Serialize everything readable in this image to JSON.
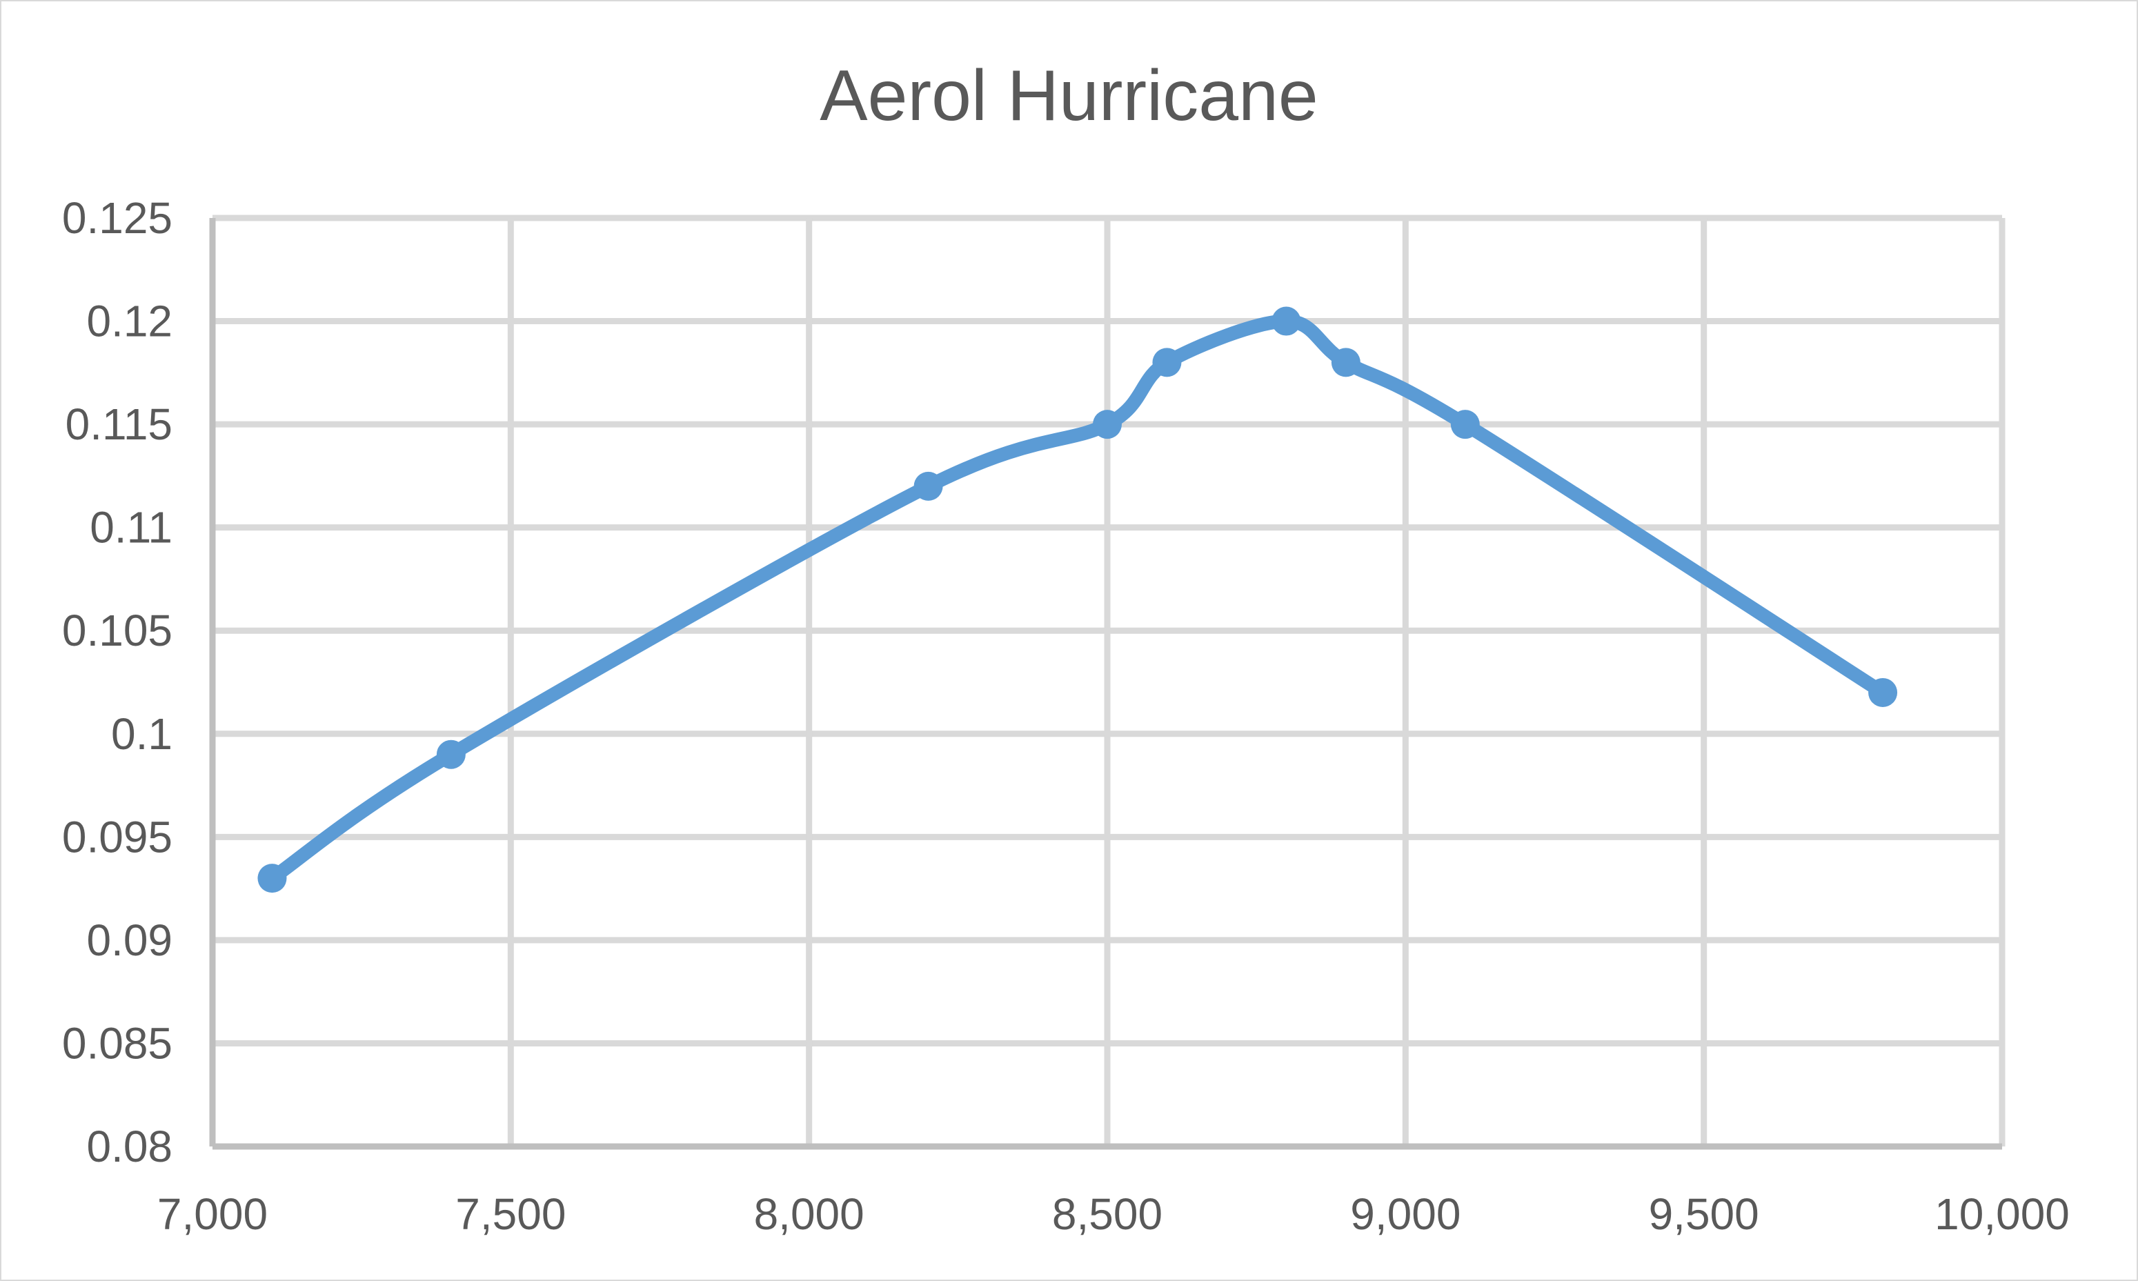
{
  "chart_data": {
    "type": "scatter",
    "title": "Aerol Hurricane",
    "xlabel": "",
    "ylabel": "",
    "xlim": [
      7000,
      10000
    ],
    "ylim": [
      0.08,
      0.125
    ],
    "x_ticks": [
      "7,000",
      "7,500",
      "8,000",
      "8,500",
      "9,000",
      "9,500",
      "10,000"
    ],
    "x_tick_values": [
      7000,
      7500,
      8000,
      8500,
      9000,
      9500,
      10000
    ],
    "y_ticks": [
      "0.08",
      "0.085",
      "0.09",
      "0.095",
      "0.1",
      "0.105",
      "0.11",
      "0.115",
      "0.12",
      "0.125"
    ],
    "y_tick_values": [
      0.08,
      0.085,
      0.09,
      0.095,
      0.1,
      0.105,
      0.11,
      0.115,
      0.12,
      0.125
    ],
    "grid": true,
    "legend": "none",
    "series": [
      {
        "color": "#5b9bd5",
        "smooth": true,
        "x": [
          7100,
          7400,
          8200,
          8500,
          8600,
          8800,
          8900,
          9100,
          9800
        ],
        "y": [
          0.093,
          0.099,
          0.112,
          0.115,
          0.118,
          0.12,
          0.118,
          0.115,
          0.102
        ]
      }
    ]
  }
}
